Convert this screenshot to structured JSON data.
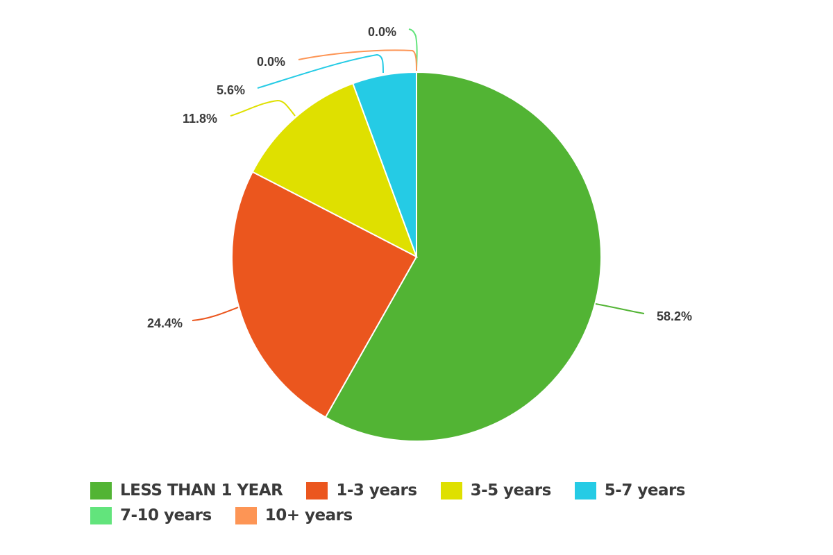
{
  "chart_data": {
    "type": "pie",
    "series": [
      {
        "name": "LESS THAN 1 YEAR",
        "value": 58.2,
        "label": "58.2%",
        "color": "#52b434"
      },
      {
        "name": "1-3 years",
        "value": 24.4,
        "label": "24.4%",
        "color": "#eb561e"
      },
      {
        "name": "3-5 years",
        "value": 11.8,
        "label": "11.8%",
        "color": "#dfe000"
      },
      {
        "name": "5-7 years",
        "value": 5.6,
        "label": "5.6%",
        "color": "#25cbe5"
      },
      {
        "name": "7-10 years",
        "value": 0.0,
        "label": "0.0%",
        "color": "#62e47c"
      },
      {
        "name": "10+ years",
        "value": 0.0,
        "label": "0.0%",
        "color": "#fd9555"
      }
    ],
    "legend_position": "bottom",
    "start_angle": "top (12 o'clock)",
    "direction": "clockwise"
  }
}
